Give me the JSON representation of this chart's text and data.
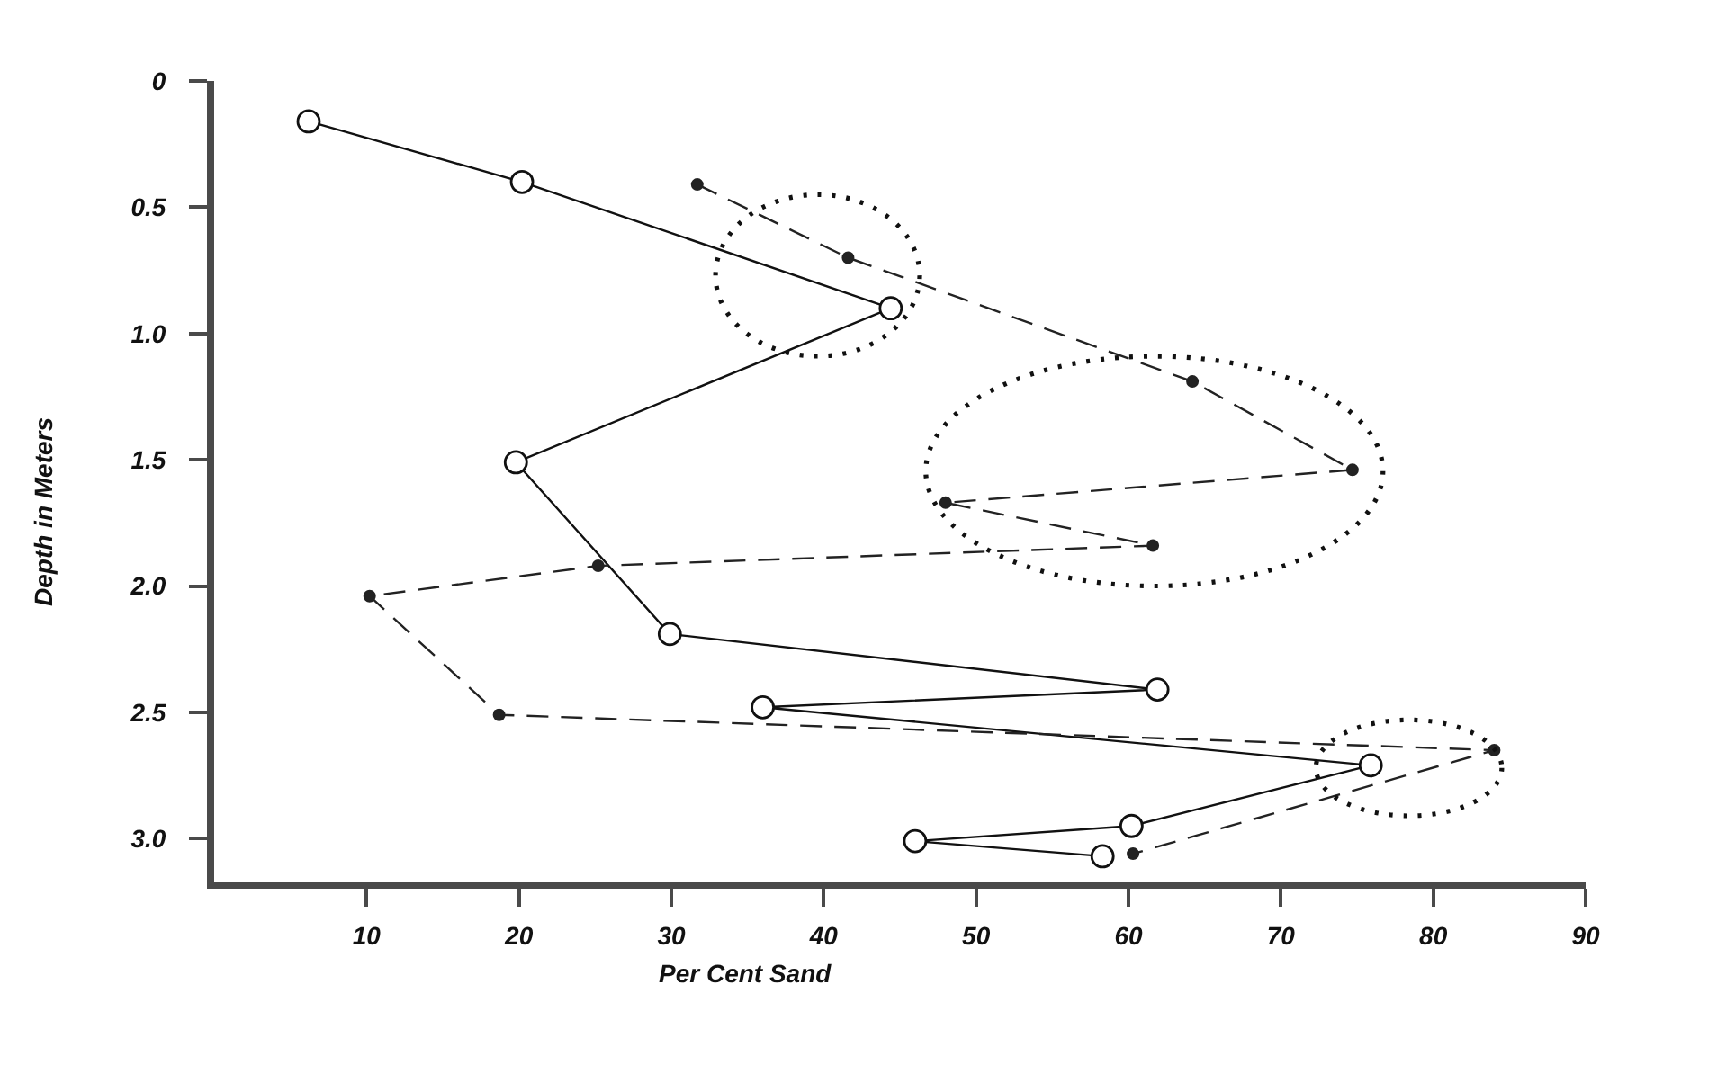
{
  "chart_data": {
    "type": "line",
    "xlabel": "Per Cent Sand",
    "ylabel": "Depth in Meters",
    "xlim": [
      0,
      90
    ],
    "xticks": [
      10,
      20,
      30,
      40,
      50,
      60,
      70,
      80,
      90
    ],
    "ylim": [
      3.17,
      0
    ],
    "yticks": [
      0,
      0.5,
      {
        "value": 1,
        "label": "1.0"
      },
      1.5,
      {
        "value": 2,
        "label": "2.0"
      },
      2.5,
      {
        "value": 3,
        "label": "3.0"
      }
    ],
    "series": [
      {
        "color": "#111111",
        "marker": "circle",
        "line_style": "solid",
        "x": [
          6.2,
          20.2,
          44.4,
          19.8,
          29.9,
          61.9,
          36.0,
          75.9,
          60.2,
          46.0,
          58.3
        ],
        "values": [
          0.16,
          0.4,
          0.9,
          1.51,
          2.19,
          2.41,
          2.48,
          2.71,
          2.95,
          3.01,
          3.07
        ]
      },
      {
        "color": "#222222",
        "marker": "circle",
        "line_style": "dashed",
        "x": [
          31.7,
          41.6,
          64.2,
          74.7,
          48.0,
          61.6,
          25.2,
          10.2,
          18.7,
          84.0,
          60.3
        ],
        "values": [
          0.41,
          0.7,
          1.19,
          1.54,
          1.67,
          1.84,
          1.92,
          2.04,
          2.51,
          2.65,
          3.06
        ]
      }
    ]
  }
}
